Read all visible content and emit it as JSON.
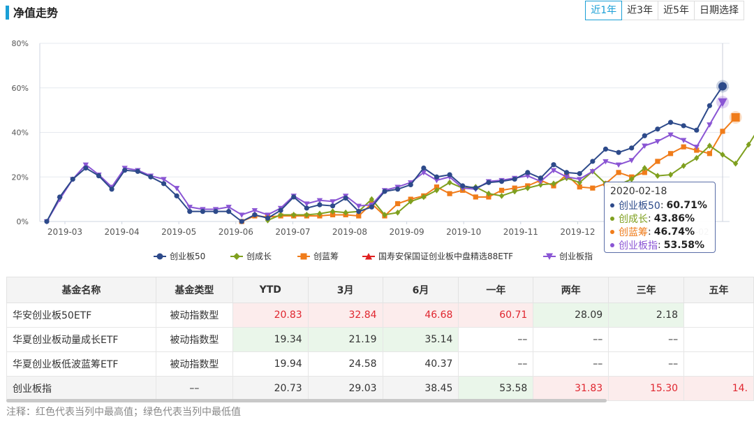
{
  "header": {
    "title": "净值走势",
    "tabs": [
      {
        "label": "近1年",
        "active": true
      },
      {
        "label": "近3年",
        "active": false
      },
      {
        "label": "近5年",
        "active": false
      },
      {
        "label": "日期选择",
        "active": false
      }
    ]
  },
  "chart_data": {
    "type": "line",
    "y_tick_labels": [
      "0%",
      "20%",
      "40%",
      "60%",
      "80%"
    ],
    "ylim": [
      0,
      80
    ],
    "x_tick_labels": [
      "2019-03",
      "2019-04",
      "2019-05",
      "2019-06",
      "2019-07",
      "2019-08",
      "2019-09",
      "2019-10",
      "2019-11",
      "2019-12",
      "2020-01",
      "2020-02"
    ],
    "grid": true,
    "legend_position": "bottom",
    "series": [
      {
        "name": "创业板50",
        "color": "#2d4a8a",
        "marker": "circle",
        "start_index": 0,
        "values": [
          0,
          11,
          19,
          24,
          20.5,
          14.5,
          23,
          22.5,
          20,
          17,
          11.5,
          4.5,
          4.5,
          4.5,
          4.5,
          0,
          3,
          1.5,
          5,
          11,
          6,
          7.5,
          7,
          10.5,
          4.5,
          6.5,
          13.5,
          14.5,
          16.5,
          24,
          20,
          21,
          16,
          15,
          17.5,
          18,
          19,
          22,
          19.5,
          25.5,
          22,
          21.5,
          27,
          32.5,
          31,
          33,
          38.5,
          41.5,
          44.5,
          43,
          41,
          52,
          60.71
        ]
      },
      {
        "name": "创成长",
        "color": "#7fa01f",
        "marker": "diamond",
        "start_index": 17,
        "values": [
          0.5,
          3,
          3,
          3,
          3.5,
          4.5,
          4,
          4.5,
          10,
          3,
          4,
          9,
          11,
          14,
          17.5,
          15,
          15.5,
          12.5,
          11.5,
          13.5,
          15,
          16.5,
          17,
          19.5,
          17.5,
          22.5,
          17,
          16.5,
          19,
          24,
          20.5,
          21,
          25,
          28.5,
          34,
          30,
          26,
          34.5,
          43.86
        ]
      },
      {
        "name": "创蓝筹",
        "color": "#f07c1a",
        "marker": "square",
        "start_index": 15,
        "values": [
          0,
          2.5,
          2,
          2.5,
          2.5,
          2.5,
          2.5,
          3,
          3,
          2.5,
          8,
          2.5,
          8,
          10,
          11.5,
          15.5,
          12.5,
          14,
          11,
          11,
          14,
          15,
          16,
          18.5,
          16,
          21,
          15.5,
          15,
          17,
          22,
          20,
          22,
          27,
          30.5,
          33.5,
          32,
          30.5,
          40.5,
          46.74
        ]
      },
      {
        "name": "国寿安保国证创业板中盘精选88ETF",
        "color": "#e02020",
        "marker": "triangle-up",
        "start_index": 0,
        "values": []
      },
      {
        "name": "创业板指",
        "color": "#8a55d4",
        "marker": "triangle-down",
        "start_index": 0,
        "values": [
          0,
          10,
          19,
          25.5,
          21,
          15.5,
          24,
          23,
          20.5,
          19,
          15,
          6.5,
          5.5,
          5.5,
          6.5,
          3,
          5,
          3,
          6,
          11.5,
          8,
          9.5,
          9,
          11.5,
          7,
          7.5,
          14,
          15.5,
          17.5,
          22,
          18.5,
          20,
          15,
          14.5,
          18,
          18.5,
          19.5,
          20.5,
          18,
          23,
          20,
          19,
          22.5,
          27,
          25.5,
          27.5,
          34,
          36,
          39,
          36.5,
          33.5,
          43.5,
          53.58
        ]
      }
    ],
    "tooltip": {
      "date": "2020-02-18",
      "rows": [
        {
          "name": "创业板50",
          "value": "60.71%"
        },
        {
          "name": "创成长",
          "value": "43.86%"
        },
        {
          "name": "创蓝筹",
          "value": "46.74%"
        },
        {
          "name": "创业板指",
          "value": "53.58%"
        }
      ]
    }
  },
  "table": {
    "headers": [
      "基金名称",
      "基金类型",
      "YTD",
      "3月",
      "6月",
      "一年",
      "两年",
      "三年",
      "五年"
    ],
    "rows": [
      {
        "cells": [
          "华安创业板50ETF",
          "被动指数型",
          "20.83",
          "32.84",
          "46.68",
          "60.71",
          "28.09",
          "2.18",
          ""
        ],
        "hl": [
          "",
          "",
          "hi",
          "hi",
          "hi",
          "hi",
          "lo",
          "lo",
          ""
        ]
      },
      {
        "cells": [
          "华夏创业板动量成长ETF",
          "被动指数型",
          "19.34",
          "21.19",
          "35.14",
          "––",
          "––",
          "––",
          ""
        ],
        "hl": [
          "",
          "",
          "lo",
          "lo",
          "lo",
          "",
          "",
          "",
          ""
        ]
      },
      {
        "cells": [
          "华夏创业板低波蓝筹ETF",
          "被动指数型",
          "19.94",
          "24.58",
          "40.37",
          "––",
          "––",
          "––",
          ""
        ],
        "hl": [
          "",
          "",
          "",
          "",
          "",
          "",
          "",
          "",
          ""
        ]
      },
      {
        "cells": [
          "创业板指",
          "––",
          "20.73",
          "29.03",
          "38.45",
          "53.58",
          "31.83",
          "15.30",
          "14."
        ],
        "hl": [
          "",
          "",
          "",
          "",
          "",
          "lo",
          "hi",
          "hi",
          "hi"
        ]
      }
    ]
  },
  "note": "注释：红色代表当列中最高值；绿色代表当列中最低值"
}
